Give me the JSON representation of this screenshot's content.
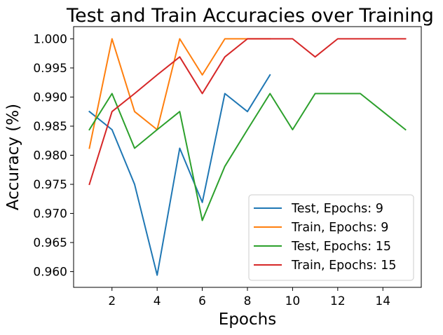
{
  "chart_data": {
    "type": "line",
    "title": "Test and Train Accuracies over Training",
    "xlabel": "Epochs",
    "ylabel": "Accuracy (%)",
    "xlim": [
      0.3,
      15.7
    ],
    "ylim": [
      0.9573,
      1.0021
    ],
    "xticks": [
      2,
      4,
      6,
      8,
      10,
      12,
      14
    ],
    "yticks": [
      0.96,
      0.965,
      0.97,
      0.975,
      0.98,
      0.985,
      0.99,
      0.995,
      1.0
    ],
    "ytick_labels": [
      "0.960",
      "0.965",
      "0.970",
      "0.975",
      "0.980",
      "0.985",
      "0.990",
      "0.995",
      "1.000"
    ],
    "legend_position": "lower-right",
    "grid": false,
    "series": [
      {
        "name": "Test, Epochs: 9",
        "color": "#1f77b4",
        "x": [
          1,
          2,
          3,
          4,
          5,
          6,
          7,
          8,
          9
        ],
        "values": [
          0.9875,
          0.9844,
          0.975,
          0.9594,
          0.9812,
          0.9719,
          0.9906,
          0.9875,
          0.9938
        ]
      },
      {
        "name": "Train, Epochs: 9",
        "color": "#ff7f0e",
        "x": [
          1,
          2,
          3,
          4,
          5,
          6,
          7,
          8,
          9
        ],
        "values": [
          0.9812,
          1.0,
          0.9875,
          0.9844,
          1.0,
          0.9938,
          1.0,
          1.0,
          1.0
        ]
      },
      {
        "name": "Test, Epochs: 15",
        "color": "#2ca02c",
        "x": [
          1,
          2,
          3,
          4,
          5,
          6,
          7,
          8,
          9,
          10,
          11,
          12,
          13,
          14,
          15
        ],
        "values": [
          0.9844,
          0.9906,
          0.9812,
          0.9844,
          0.9875,
          0.9688,
          0.9781,
          0.9844,
          0.9906,
          0.9844,
          0.9906,
          0.9906,
          0.9906,
          0.9875,
          0.9844
        ]
      },
      {
        "name": "Train, Epochs: 15",
        "color": "#d62728",
        "x": [
          1,
          2,
          3,
          4,
          5,
          6,
          7,
          8,
          9,
          10,
          11,
          12,
          13,
          14,
          15
        ],
        "values": [
          0.975,
          0.9875,
          0.9906,
          0.9938,
          0.9969,
          0.9906,
          0.9969,
          1.0,
          1.0,
          1.0,
          0.9969,
          1.0,
          1.0,
          1.0,
          1.0
        ]
      }
    ]
  }
}
